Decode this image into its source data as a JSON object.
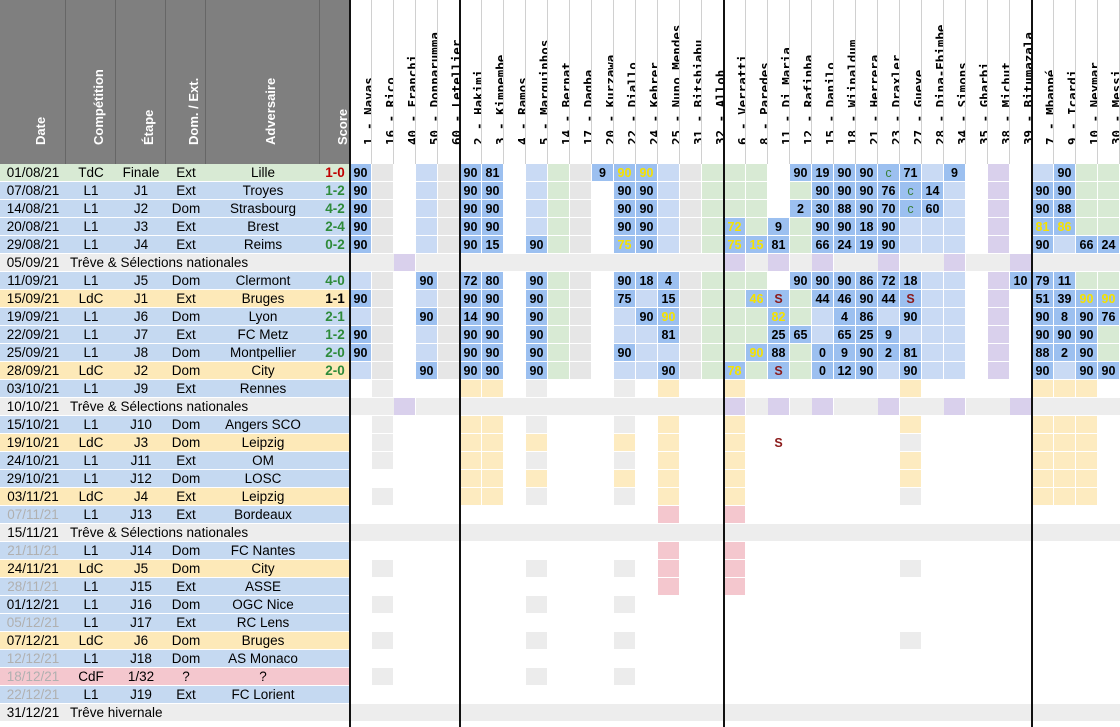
{
  "columns": [
    "Date",
    "Compétition",
    "Étape",
    "Dom. / Ext.",
    "Adversaire",
    "Score"
  ],
  "players": [
    "1 - Navas",
    "16 - Rico",
    "40 - Franchi",
    "50 - Donnarumma",
    "60 - Letellier",
    "2 - Hakimi",
    "3 - Kimpembe",
    "4 - Ramos",
    "5 - Marquinhos",
    "14 - Bernat",
    "17 - Dagba",
    "20 - Kurzawa",
    "22 - Diallo",
    "24 - Kehrer",
    "25 - Nuno Mendes",
    "31 - Bitshiabu",
    "32 - Alloh",
    "6 - Verratti",
    "8 - Paredes",
    "11 - Di Maria",
    "12 - Rafinha",
    "15 - Danilo",
    "18 - Wijnaldum",
    "21 - Herrera",
    "23 - Draxler",
    "27 - Gueye",
    "28 - Dina-Ebimbe",
    "34 - Simons",
    "35 - Gharbi",
    "38 - Michut",
    "39 - Bitumazala",
    "7 - Mbappé",
    "9 - Icardi",
    "10 - Neymar",
    "30 - Messi"
  ],
  "matches": [
    {
      "date": "01/08/21",
      "comp": "TdC",
      "stage": "Finale",
      "venue": "Ext",
      "opp": "Lille",
      "score": "1-0"
    },
    {
      "date": "07/08/21",
      "comp": "L1",
      "stage": "J1",
      "venue": "Ext",
      "opp": "Troyes",
      "score": "1-2"
    },
    {
      "date": "14/08/21",
      "comp": "L1",
      "stage": "J2",
      "venue": "Dom",
      "opp": "Strasbourg",
      "score": "4-2"
    },
    {
      "date": "20/08/21",
      "comp": "L1",
      "stage": "J3",
      "venue": "Ext",
      "opp": "Brest",
      "score": "2-4"
    },
    {
      "date": "29/08/21",
      "comp": "L1",
      "stage": "J4",
      "venue": "Ext",
      "opp": "Reims",
      "score": "0-2"
    },
    {
      "date": "05/09/21",
      "span": "Trêve & Sélections nationales"
    },
    {
      "date": "11/09/21",
      "comp": "L1",
      "stage": "J5",
      "venue": "Dom",
      "opp": "Clermont",
      "score": "4-0"
    },
    {
      "date": "15/09/21",
      "comp": "LdC",
      "stage": "J1",
      "venue": "Ext",
      "opp": "Bruges",
      "score": "1-1"
    },
    {
      "date": "19/09/21",
      "comp": "L1",
      "stage": "J6",
      "venue": "Dom",
      "opp": "Lyon",
      "score": "2-1"
    },
    {
      "date": "22/09/21",
      "comp": "L1",
      "stage": "J7",
      "venue": "Ext",
      "opp": "FC Metz",
      "score": "1-2"
    },
    {
      "date": "25/09/21",
      "comp": "L1",
      "stage": "J8",
      "venue": "Dom",
      "opp": "Montpellier",
      "score": "2-0"
    },
    {
      "date": "28/09/21",
      "comp": "LdC",
      "stage": "J2",
      "venue": "Dom",
      "opp": "City",
      "score": "2-0"
    },
    {
      "date": "03/10/21",
      "comp": "L1",
      "stage": "J9",
      "venue": "Ext",
      "opp": "Rennes",
      "score": ""
    },
    {
      "date": "10/10/21",
      "span": "Trêve & Sélections nationales"
    },
    {
      "date": "15/10/21",
      "comp": "L1",
      "stage": "J10",
      "venue": "Dom",
      "opp": "Angers SCO",
      "score": ""
    },
    {
      "date": "19/10/21",
      "comp": "LdC",
      "stage": "J3",
      "venue": "Dom",
      "opp": "Leipzig",
      "score": ""
    },
    {
      "date": "24/10/21",
      "comp": "L1",
      "stage": "J11",
      "venue": "Ext",
      "opp": "OM",
      "score": ""
    },
    {
      "date": "29/10/21",
      "comp": "L1",
      "stage": "J12",
      "venue": "Dom",
      "opp": "LOSC",
      "score": ""
    },
    {
      "date": "03/11/21",
      "comp": "LdC",
      "stage": "J4",
      "venue": "Ext",
      "opp": "Leipzig",
      "score": ""
    },
    {
      "date": "07/11/21",
      "comp": "L1",
      "stage": "J13",
      "venue": "Ext",
      "opp": "Bordeaux",
      "score": "",
      "grey": true
    },
    {
      "date": "15/11/21",
      "span": "Trêve & Sélections nationales"
    },
    {
      "date": "21/11/21",
      "comp": "L1",
      "stage": "J14",
      "venue": "Dom",
      "opp": "FC Nantes",
      "score": "",
      "grey": true
    },
    {
      "date": "24/11/21",
      "comp": "LdC",
      "stage": "J5",
      "venue": "Dom",
      "opp": "City",
      "score": ""
    },
    {
      "date": "28/11/21",
      "comp": "L1",
      "stage": "J15",
      "venue": "Ext",
      "opp": "ASSE",
      "score": "",
      "grey": true
    },
    {
      "date": "01/12/21",
      "comp": "L1",
      "stage": "J16",
      "venue": "Dom",
      "opp": "OGC Nice",
      "score": ""
    },
    {
      "date": "05/12/21",
      "comp": "L1",
      "stage": "J17",
      "venue": "Ext",
      "opp": "RC Lens",
      "score": "",
      "grey": true
    },
    {
      "date": "07/12/21",
      "comp": "LdC",
      "stage": "J6",
      "venue": "Dom",
      "opp": "Bruges",
      "score": ""
    },
    {
      "date": "12/12/21",
      "comp": "L1",
      "stage": "J18",
      "venue": "Dom",
      "opp": "AS Monaco",
      "score": "",
      "grey": true
    },
    {
      "date": "18/12/21",
      "comp": "CdF",
      "stage": "1/32",
      "venue": "?",
      "opp": "?",
      "score": "",
      "grey": true,
      "cdf": true
    },
    {
      "date": "22/12/21",
      "comp": "L1",
      "stage": "J19",
      "venue": "Ext",
      "opp": "FC Lorient",
      "score": "",
      "grey": true
    },
    {
      "date": "31/12/21",
      "span": "Trêve hivernale"
    }
  ],
  "minutes": {
    "0": {
      "0": "90",
      "5": "90",
      "6": "81",
      "11": "9",
      "12": "90",
      "13": "90",
      "20": "90",
      "21": "19",
      "22": "90",
      "23": "90",
      "24": "c",
      "25": "71",
      "27": "9",
      "32": "90"
    },
    "1": {
      "0": "90",
      "5": "90",
      "6": "90",
      "12": "90",
      "13": "90",
      "21": "90",
      "22": "90",
      "23": "90",
      "24": "76",
      "25": "c",
      "26": "14",
      "31": "90",
      "32": "90"
    },
    "2": {
      "0": "90",
      "5": "90",
      "6": "90",
      "12": "90",
      "13": "90",
      "20": "2",
      "21": "30",
      "22": "88",
      "23": "90",
      "24": "70",
      "25": "c",
      "26": "60",
      "31": "90",
      "32": "88"
    },
    "3": {
      "0": "90",
      "5": "90",
      "6": "90",
      "12": "90",
      "13": "90",
      "17": "72",
      "19": "9",
      "21": "90",
      "22": "90",
      "23": "18",
      "24": "90",
      "31": "81",
      "32": "86"
    },
    "4": {
      "0": "90",
      "5": "90",
      "6": "15",
      "8": "90",
      "12": "75",
      "13": "90",
      "17": "75",
      "18": "15",
      "19": "81",
      "21": "66",
      "22": "24",
      "23": "19",
      "24": "90",
      "31": "90",
      "33": "66",
      "34": "24"
    },
    "6": {
      "3": "90",
      "5": "72",
      "6": "80",
      "8": "90",
      "12": "90",
      "13": "18",
      "14": "4",
      "20": "90",
      "21": "90",
      "22": "90",
      "23": "86",
      "24": "72",
      "25": "18",
      "30": "10",
      "31": "79",
      "32": "11"
    },
    "7": {
      "0": "90",
      "5": "90",
      "6": "90",
      "8": "90",
      "12": "75",
      "14": "15",
      "18": "46",
      "19": "S",
      "21": "44",
      "22": "46",
      "23": "90",
      "24": "44",
      "25": "S",
      "31": "51",
      "32": "39",
      "33": "90",
      "34": "90"
    },
    "8": {
      "3": "90",
      "5": "14",
      "6": "90",
      "8": "90",
      "13": "90",
      "14": "90",
      "19": "82",
      "22": "4",
      "23": "86",
      "25": "90",
      "31": "90",
      "32": "8",
      "33": "90",
      "34": "76"
    },
    "9": {
      "0": "90",
      "5": "90",
      "6": "90",
      "8": "90",
      "14": "81",
      "19": "25",
      "20": "65",
      "22": "65",
      "23": "25",
      "24": "9",
      "31": "90",
      "32": "90",
      "33": "90"
    },
    "10": {
      "0": "90",
      "5": "90",
      "6": "90",
      "8": "90",
      "12": "90",
      "18": "90",
      "19": "88",
      "21": "0",
      "22": "9",
      "23": "90",
      "24": "2",
      "25": "81",
      "31": "88",
      "32": "2",
      "33": "90"
    },
    "11": {
      "3": "90",
      "5": "90",
      "6": "90",
      "8": "90",
      "14": "90",
      "17": "78",
      "19": "S",
      "21": "0",
      "22": "12",
      "23": "90",
      "25": "90",
      "31": "90",
      "33": "90",
      "34": "90"
    },
    "15": {
      "19": "S"
    }
  }
}
